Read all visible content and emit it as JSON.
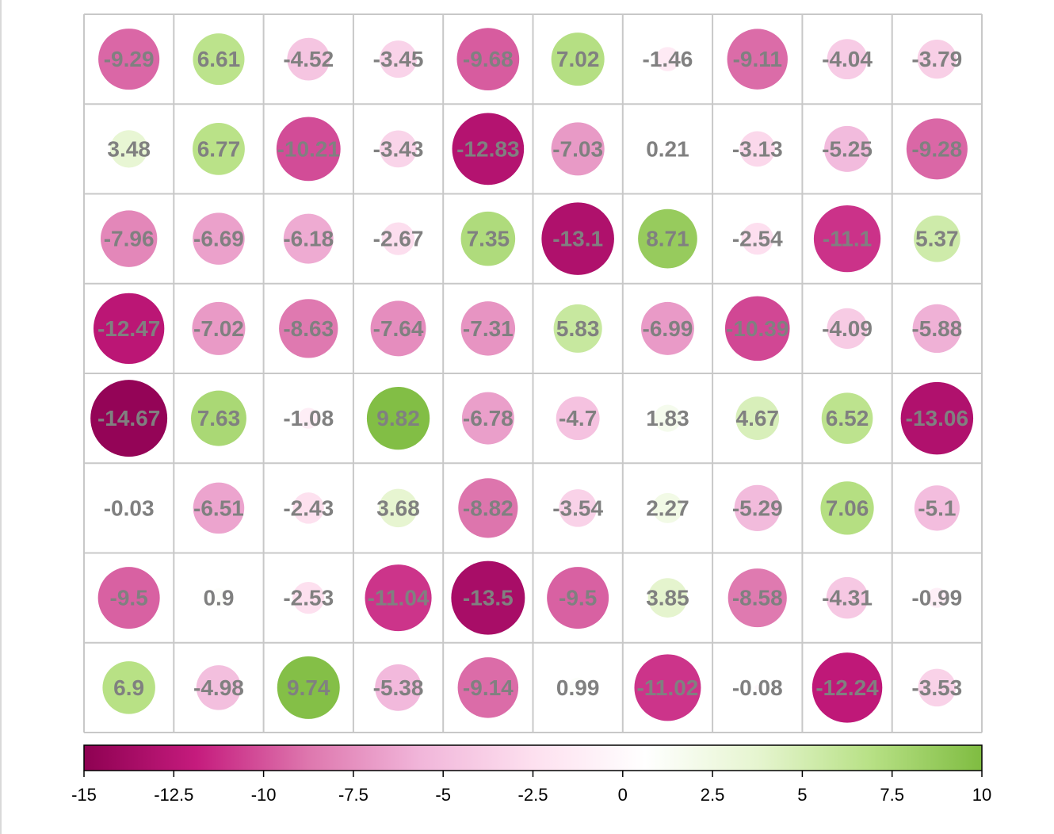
{
  "chart_data": {
    "type": "heatmap",
    "title": "",
    "xlabel": "",
    "ylabel": "",
    "rows": 8,
    "cols": 10,
    "values": [
      [
        -9.29,
        6.61,
        -4.52,
        -3.45,
        -9.68,
        7.02,
        -1.46,
        -9.11,
        -4.04,
        -3.79
      ],
      [
        3.48,
        6.77,
        -10.21,
        -3.43,
        -12.83,
        -7.03,
        0.21,
        -3.13,
        -5.25,
        -9.28
      ],
      [
        -7.96,
        -6.69,
        -6.18,
        -2.67,
        7.35,
        -13.1,
        8.71,
        -2.54,
        -11.1,
        5.37
      ],
      [
        -12.47,
        -7.02,
        -8.63,
        -7.64,
        -7.31,
        5.83,
        -6.99,
        -10.39,
        -4.09,
        -5.88
      ],
      [
        -14.67,
        7.63,
        -1.08,
        9.82,
        -6.78,
        -4.7,
        1.83,
        4.67,
        6.52,
        -13.06
      ],
      [
        -0.03,
        -6.51,
        -2.43,
        3.68,
        -8.82,
        -3.54,
        2.27,
        -5.29,
        7.06,
        -5.1
      ],
      [
        -9.5,
        0.9,
        -2.53,
        -11.04,
        -13.5,
        -9.5,
        3.85,
        -8.58,
        -4.31,
        -0.99
      ],
      [
        6.9,
        -4.98,
        9.74,
        -5.38,
        -9.14,
        0.99,
        -11.02,
        -0.08,
        -12.24,
        -3.53
      ]
    ],
    "colorbar": {
      "range": [
        -15,
        10
      ],
      "ticks": [
        -15,
        -12.5,
        -10,
        -7.5,
        -5,
        -2.5,
        0,
        2.5,
        5,
        7.5,
        10
      ],
      "tick_labels": [
        "-15",
        "-12.5",
        "-10",
        "-7.5",
        "-5",
        "-2.5",
        "0",
        "2.5",
        "5",
        "7.5",
        "10"
      ],
      "colors": [
        "#8e0152",
        "#c51b7d",
        "#de77ae",
        "#f1b6da",
        "#fde0ef",
        "#ffffff",
        "#e6f5d0",
        "#b8e186",
        "#7fbc41"
      ]
    },
    "value_label_color": "#808080",
    "grid_color": "#c8c8c8"
  }
}
